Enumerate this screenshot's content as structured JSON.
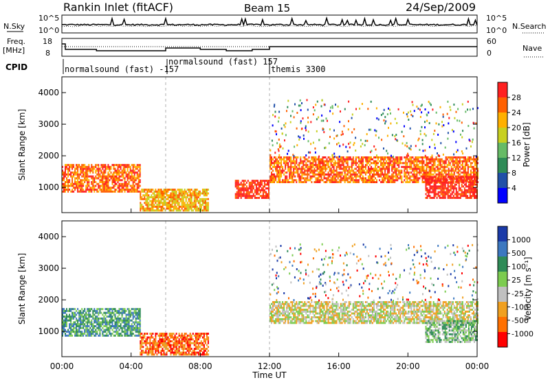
{
  "header": {
    "title": "Rankin Inlet (fitACF)",
    "beam": "Beam 15",
    "date": "24/Sep/2009"
  },
  "noise_panel": {
    "left_label": "N.Sky",
    "left_ticks": [
      "10^5",
      "10^0"
    ],
    "right_label": "N.Search",
    "right_ticks": [
      "10^5",
      "10^0"
    ]
  },
  "freq_panel": {
    "left_label_1": "Freq.",
    "left_label_2": "[MHz]",
    "left_ticks": [
      "18",
      "8"
    ],
    "right_label": "Nave",
    "right_ticks": [
      "60",
      "0"
    ]
  },
  "cpid": {
    "label": "CPID",
    "modes": [
      {
        "name": "normalsound (fast) -157",
        "start_hour": 0
      },
      {
        "name": "normalsound (fast) 157",
        "start_hour": 6
      },
      {
        "name": "themis 3300",
        "start_hour": 12
      }
    ]
  },
  "colors": {
    "power": [
      "#0000ff",
      "#2050a8",
      "#2e8b57",
      "#66bb66",
      "#c8d020",
      "#ffb000",
      "#ff6000",
      "#ff2020"
    ],
    "velocity": [
      "#1a3aa8",
      "#3c78c0",
      "#2e8b57",
      "#7ccc50",
      "#c0c0c0",
      "#f0a020",
      "#ff7000",
      "#ff0000"
    ]
  },
  "chart_data": [
    {
      "type": "heatmap",
      "panel": "power",
      "ylabel": "Slant Range [km]",
      "yticks": [
        "4000",
        "3000",
        "2000",
        "1000"
      ],
      "ylim": [
        200,
        4500
      ],
      "xlim": [
        0,
        24
      ],
      "colorbar": {
        "label": "Power [dB]",
        "ticks": [
          "28",
          "24",
          "20",
          "16",
          "12",
          "8",
          "4"
        ]
      },
      "regions": [
        {
          "x": [
            0,
            4.5
          ],
          "y": [
            900,
            1750
          ],
          "level": 6
        },
        {
          "x": [
            4.5,
            8.5
          ],
          "y": [
            300,
            1000
          ],
          "level": 5
        },
        {
          "x": [
            10,
            12
          ],
          "y": [
            700,
            1300
          ],
          "level": 7
        },
        {
          "x": [
            12,
            24
          ],
          "y": [
            1200,
            2000
          ],
          "level": 6
        },
        {
          "x": [
            21,
            24
          ],
          "y": [
            700,
            1400
          ],
          "level": 7
        }
      ]
    },
    {
      "type": "heatmap",
      "panel": "velocity",
      "ylabel": "Slant Range [km]",
      "yticks": [
        "4000",
        "3000",
        "2000",
        "1000"
      ],
      "ylim": [
        200,
        4500
      ],
      "xlim": [
        0,
        24
      ],
      "colorbar": {
        "label": "Velocity [m s^-1]",
        "ticks": [
          "1000",
          "500",
          "100",
          "25",
          "-25",
          "-100",
          "-500",
          "-1000"
        ]
      },
      "regions": [
        {
          "x": [
            0,
            4.5
          ],
          "y": [
            900,
            1750
          ],
          "level": 2
        },
        {
          "x": [
            4.5,
            8.5
          ],
          "y": [
            300,
            1000
          ],
          "level": 6
        },
        {
          "x": [
            12,
            24
          ],
          "y": [
            1300,
            2000
          ],
          "level": 4
        },
        {
          "x": [
            21,
            24
          ],
          "y": [
            700,
            1400
          ],
          "level": 3
        }
      ]
    }
  ],
  "xaxis": {
    "label": "Time UT",
    "ticks": [
      "00:00",
      "04:00",
      "08:00",
      "12:00",
      "16:00",
      "20:00",
      "00:00"
    ]
  }
}
